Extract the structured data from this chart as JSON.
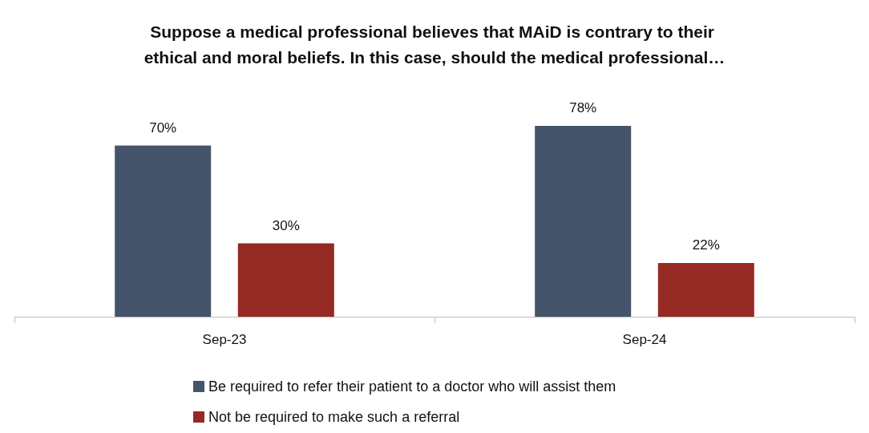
{
  "chart_data": {
    "type": "bar",
    "title": "Suppose a medical professional believes that MAiD is contrary to their ethical and moral beliefs. In this case, should the medical professional…",
    "categories": [
      "Sep-23",
      "Sep-24"
    ],
    "series": [
      {
        "name": "Be required to refer their patient to a doctor who will assist them",
        "color": "#44546a",
        "values": [
          70,
          78
        ],
        "value_labels": [
          "70%",
          "78%"
        ]
      },
      {
        "name": "Not be required to make such a referral",
        "color": "#952923",
        "values": [
          30,
          22
        ],
        "value_labels": [
          "30%",
          "22%"
        ]
      }
    ],
    "legend": "bottom"
  }
}
